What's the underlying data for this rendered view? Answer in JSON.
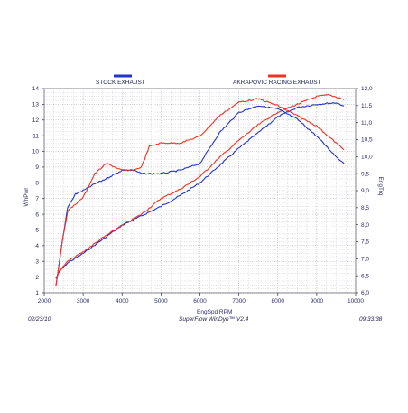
{
  "chart_data": {
    "type": "line",
    "x_label": "EngSpd  RPM",
    "y_left_label": "WhPwr",
    "y_right_label": "EngTrq",
    "x_range": [
      2000,
      10000
    ],
    "y_left_range": [
      1,
      14
    ],
    "y_right_range": [
      6.0,
      12.0
    ],
    "x_ticks": [
      "2000",
      "3000",
      "4000",
      "5000",
      "6000",
      "7000",
      "8000",
      "9000",
      "10000"
    ],
    "y_left_ticks": [
      "1",
      "2",
      "3",
      "4",
      "5",
      "6",
      "7",
      "8",
      "9",
      "10",
      "11",
      "12",
      "13",
      "14"
    ],
    "y_right_ticks": [
      "6,0",
      "6,5",
      "7,0",
      "7,5",
      "8,0",
      "8,5",
      "9,0",
      "9,5",
      "10,0",
      "10,5",
      "11,0",
      "11,5",
      "12,0"
    ],
    "grid": "dotted",
    "legend_placement": "top",
    "series": [
      {
        "name": "STOCK EXHAUST",
        "color": "#2233cc",
        "axis": "left",
        "quantity": "power",
        "x": [
          2300,
          2400,
          2600,
          2800,
          3000,
          3500,
          4000,
          4500,
          5000,
          5500,
          6000,
          6500,
          7000,
          7500,
          8000,
          8500,
          9000,
          9500,
          9700
        ],
        "y": [
          1.9,
          2.4,
          2.9,
          3.2,
          3.5,
          4.4,
          5.3,
          5.9,
          6.5,
          7.2,
          8.0,
          9.1,
          10.2,
          11.2,
          12.2,
          12.8,
          13.0,
          13.1,
          12.9
        ]
      },
      {
        "name": "AKRAPOVIC RACING EXHAUST",
        "color": "#ee3322",
        "axis": "left",
        "quantity": "power",
        "x": [
          2300,
          2400,
          2600,
          2800,
          3000,
          3500,
          4000,
          4500,
          5000,
          5500,
          6000,
          6500,
          7000,
          7500,
          8000,
          8500,
          9000,
          9300,
          9600,
          9700
        ],
        "y": [
          1.9,
          2.4,
          3.0,
          3.3,
          3.6,
          4.5,
          5.3,
          6.0,
          7.0,
          7.6,
          8.4,
          9.6,
          10.7,
          11.7,
          12.5,
          13.0,
          13.5,
          13.6,
          13.4,
          13.3
        ]
      },
      {
        "name": "STOCK EXHAUST",
        "color": "#2233cc",
        "axis": "right",
        "quantity": "torque",
        "x": [
          2300,
          2450,
          2600,
          2800,
          3000,
          3300,
          3500,
          4000,
          4300,
          4500,
          5000,
          5500,
          6000,
          6500,
          7000,
          7500,
          8000,
          8500,
          9000,
          9500,
          9700
        ],
        "y": [
          6.2,
          7.4,
          8.5,
          8.9,
          9.0,
          9.2,
          9.3,
          9.6,
          9.6,
          9.5,
          9.5,
          9.6,
          9.8,
          10.7,
          11.3,
          11.5,
          11.4,
          11.1,
          10.6,
          10.0,
          9.8
        ]
      },
      {
        "name": "AKRAPOVIC RACING EXHAUST",
        "color": "#ee3322",
        "axis": "right",
        "quantity": "torque",
        "x": [
          2300,
          2450,
          2600,
          2800,
          3000,
          3300,
          3600,
          3800,
          4000,
          4300,
          4500,
          4700,
          5000,
          5500,
          6000,
          6500,
          7000,
          7500,
          8000,
          8500,
          9000,
          9500,
          9700
        ],
        "y": [
          6.2,
          7.4,
          8.4,
          8.6,
          8.8,
          9.5,
          9.8,
          9.7,
          9.6,
          9.6,
          9.7,
          10.3,
          10.4,
          10.4,
          10.6,
          11.2,
          11.6,
          11.7,
          11.5,
          11.2,
          10.9,
          10.4,
          10.2
        ]
      }
    ]
  },
  "footer": {
    "date": "02/23/10",
    "software": "SuperFlow WinDyn™ V2.4",
    "time": "09:33:38"
  }
}
